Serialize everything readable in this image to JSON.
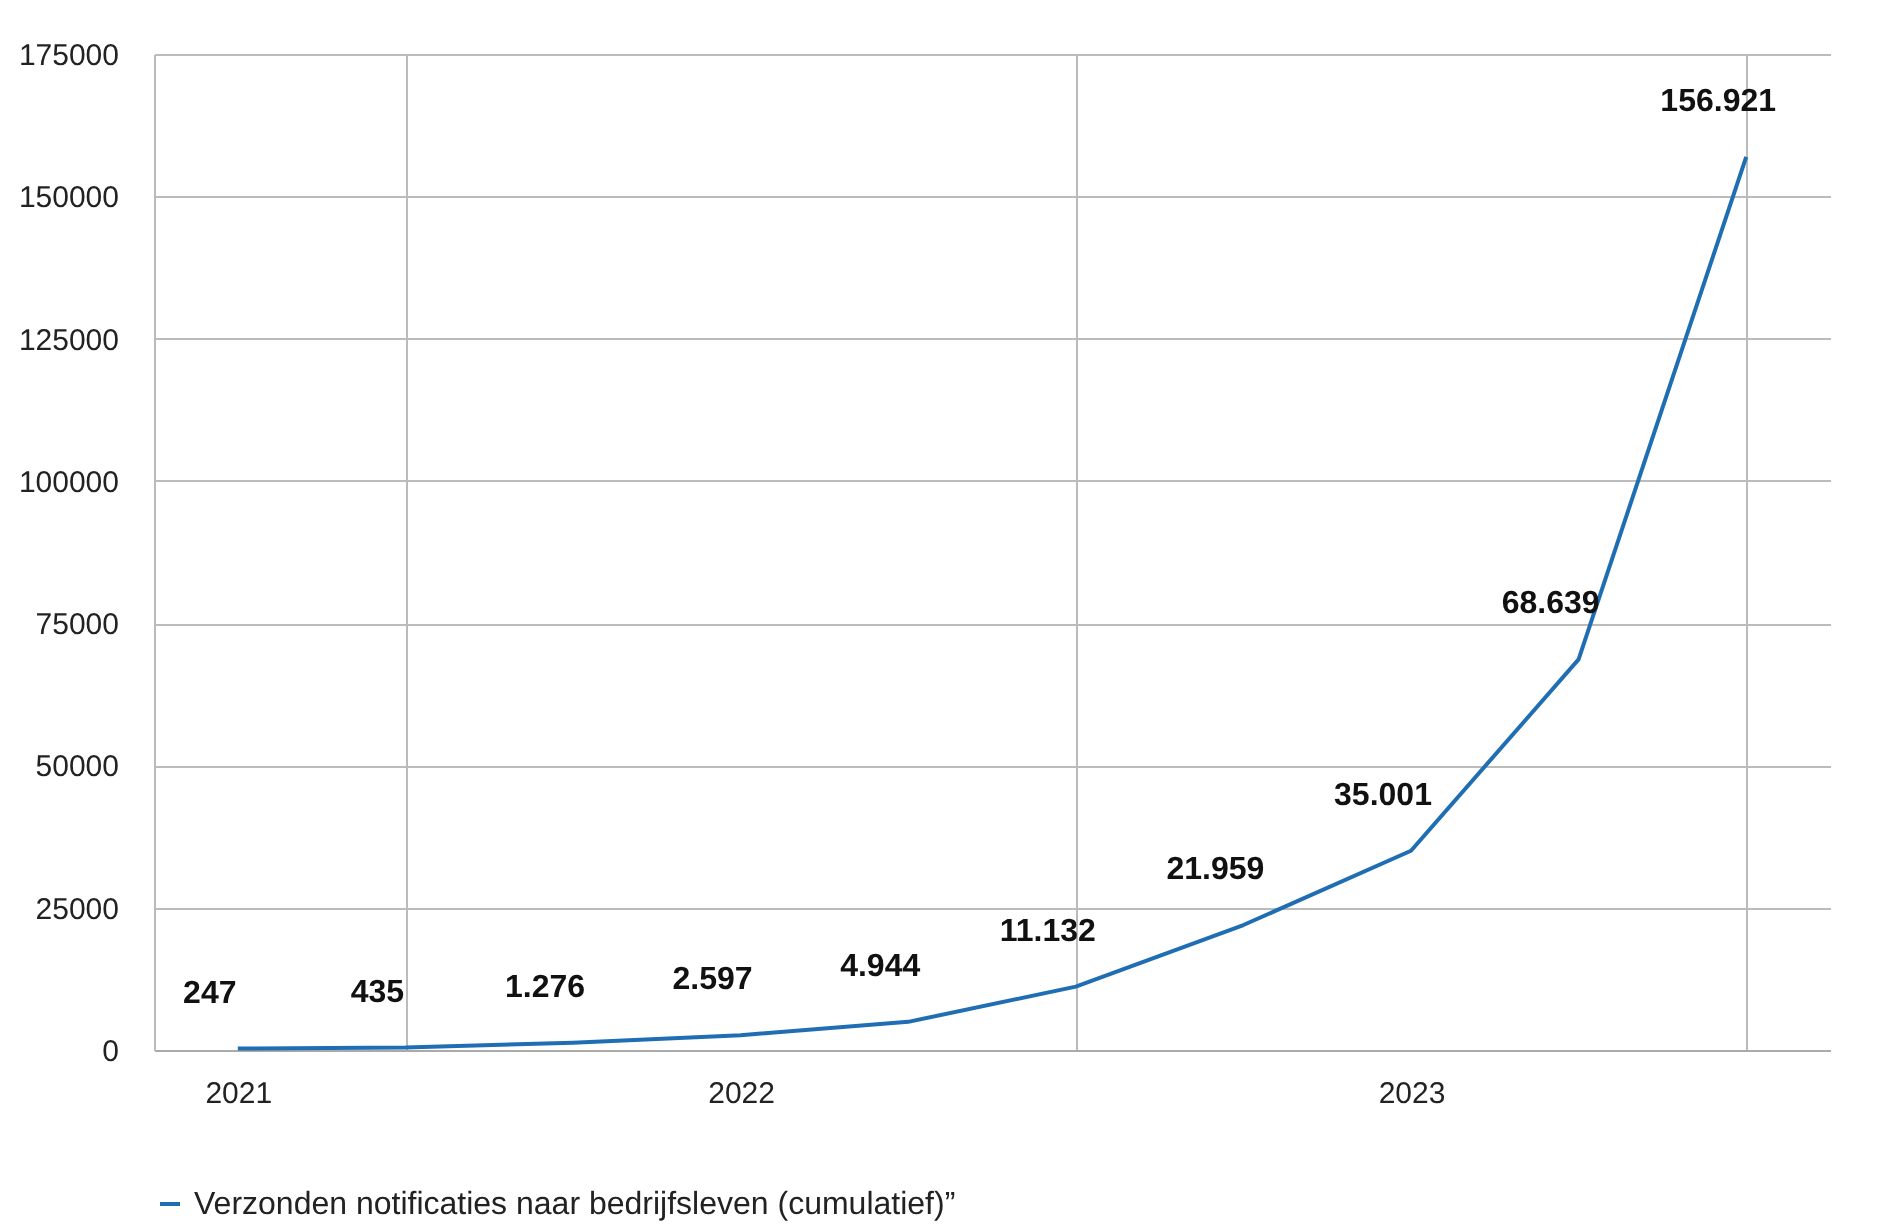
{
  "chart_data": {
    "type": "line",
    "categories": [
      "2021",
      null,
      null,
      "2022",
      null,
      null,
      null,
      "2023",
      null,
      null
    ],
    "series": [
      {
        "name": "Verzonden notificaties naar bedrijfsleven (cumulatief)”",
        "color": "#1f6eb4",
        "values": [
          247,
          435,
          1276,
          2597,
          4944,
          11132,
          21959,
          35001,
          68639,
          156921
        ],
        "value_labels": [
          "247",
          "435",
          "1.276",
          "2.597",
          "4.944",
          "11.132",
          "21.959",
          "35.001",
          "68.639",
          "156.921"
        ]
      }
    ],
    "ylim": [
      0,
      175000
    ],
    "yticks": [
      0,
      25000,
      50000,
      75000,
      100000,
      125000,
      150000,
      175000
    ],
    "grid": true,
    "legend": "bottom",
    "marker": "none",
    "line_style": "solid"
  }
}
